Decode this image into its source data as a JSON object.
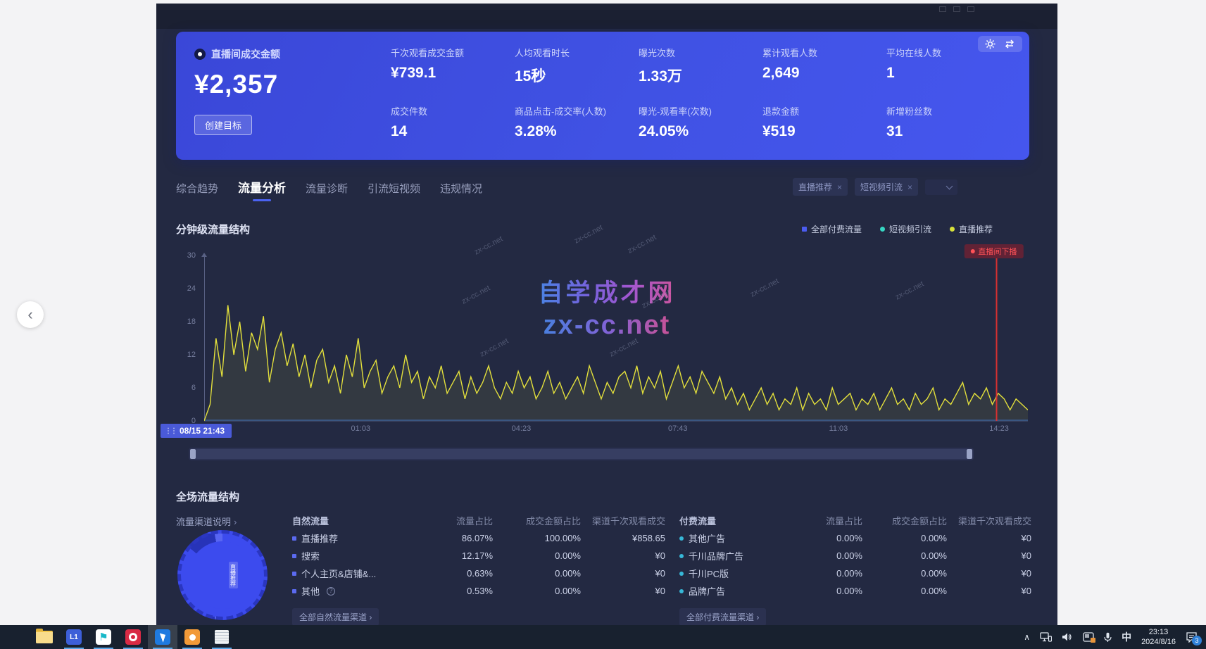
{
  "page": {
    "back_glyph": "‹"
  },
  "icons": {
    "close": "×",
    "grip": "⋮⋮",
    "chevron_right": "›",
    "info": "?",
    "collapse": "∧",
    "flag": "⚑"
  },
  "watermark": {
    "title": "自学成才网",
    "url": "zx-cc.net"
  },
  "header_card": {
    "primary": {
      "label": "直播间成交金额",
      "value": "¥2,357",
      "button": "创建目标"
    },
    "metrics": [
      {
        "label": "千次观看成交金额",
        "value": "¥739.1"
      },
      {
        "label": "人均观看时长",
        "value": "15秒"
      },
      {
        "label": "曝光次数",
        "value": "1.33万"
      },
      {
        "label": "累计观看人数",
        "value": "2,649"
      },
      {
        "label": "平均在线人数",
        "value": "1"
      },
      {
        "label": "成交件数",
        "value": "14"
      },
      {
        "label": "商品点击-成交率(人数)",
        "value": "3.28%"
      },
      {
        "label": "曝光-观看率(次数)",
        "value": "24.05%"
      },
      {
        "label": "退款金额",
        "value": "¥519"
      },
      {
        "label": "新增粉丝数",
        "value": "31"
      }
    ]
  },
  "tabs": [
    {
      "label": "综合趋势",
      "active": false
    },
    {
      "label": "流量分析",
      "active": true
    },
    {
      "label": "流量诊断",
      "active": false
    },
    {
      "label": "引流短视频",
      "active": false
    },
    {
      "label": "违规情况",
      "active": false
    }
  ],
  "filters": {
    "chips": [
      {
        "label": "直播推荐"
      },
      {
        "label": "短视频引流"
      }
    ]
  },
  "minute_section": {
    "title": "分钟级流量结构",
    "legend": [
      {
        "label": "全部付费流量",
        "color": "#4b5cf0",
        "shape": "square"
      },
      {
        "label": "短视频引流",
        "color": "#36d6c3",
        "shape": "circle"
      },
      {
        "label": "直播推荐",
        "color": "#d8e23a",
        "shape": "circle"
      }
    ]
  },
  "chart_data": {
    "type": "line",
    "title": "分钟级流量结构",
    "ylabel": "",
    "ylim": [
      0,
      30
    ],
    "y_ticks": [
      0,
      6,
      12,
      18,
      24,
      30
    ],
    "grid": false,
    "legend_position": "top-right",
    "x_start_label": "08/15 21:43",
    "x_ticks": [
      {
        "label": "01:03",
        "pos": 0.19
      },
      {
        "label": "04:23",
        "pos": 0.385
      },
      {
        "label": "07:43",
        "pos": 0.575
      },
      {
        "label": "11:03",
        "pos": 0.77
      },
      {
        "label": "14:23",
        "pos": 0.965
      }
    ],
    "marker": {
      "label": "直播间下播",
      "pos": 0.962
    },
    "series": [
      {
        "name": "直播推荐",
        "color": "#e3e03c",
        "values": [
          0,
          3,
          15,
          8,
          21,
          12,
          18,
          9,
          16,
          13,
          19,
          7,
          13,
          16,
          10,
          14,
          8,
          12,
          6,
          11,
          13,
          7,
          10,
          5,
          12,
          8,
          15,
          6,
          9,
          11,
          5,
          8,
          10,
          6,
          12,
          7,
          9,
          4,
          8,
          6,
          10,
          5,
          7,
          9,
          4,
          8,
          5,
          7,
          10,
          6,
          4,
          7,
          5,
          9,
          6,
          8,
          4,
          6,
          9,
          5,
          7,
          4,
          6,
          8,
          5,
          10,
          7,
          4,
          7,
          5,
          8,
          9,
          6,
          10,
          5,
          8,
          6,
          9,
          4,
          7,
          10,
          6,
          8,
          5,
          9,
          7,
          5,
          8,
          4,
          6,
          3,
          5,
          2,
          4,
          6,
          3,
          5,
          2,
          4,
          3,
          6,
          2,
          5,
          3,
          4,
          2,
          6,
          3,
          4,
          5,
          2,
          4,
          3,
          5,
          2,
          4,
          6,
          3,
          4,
          2,
          5,
          3,
          4,
          6,
          2,
          4,
          3,
          5,
          7,
          3,
          5,
          4,
          6,
          3,
          5,
          4,
          2,
          4,
          3,
          2
        ]
      },
      {
        "name": "短视频引流",
        "color": "#36d6c3",
        "flat_value": 0
      },
      {
        "name": "全部付费流量",
        "color": "#4b5cf0",
        "flat_value": 0
      }
    ]
  },
  "overall_section": {
    "title": "全场流量结构",
    "channel_note_label": "流量渠道说明",
    "donut_label": "直播推荐",
    "natural": {
      "title": "自然流量",
      "columns": [
        "流量占比",
        "成交金额占比",
        "渠道千次观看成交"
      ],
      "bullet_color": "#5b6af0",
      "bullet_shape": "square",
      "rows": [
        {
          "name": "直播推荐",
          "traffic": "86.07%",
          "gmv": "100.00%",
          "per_mille": "¥858.65",
          "info": false
        },
        {
          "name": "搜索",
          "traffic": "12.17%",
          "gmv": "0.00%",
          "per_mille": "¥0",
          "info": false
        },
        {
          "name": "个人主页&店铺&...",
          "traffic": "0.63%",
          "gmv": "0.00%",
          "per_mille": "¥0",
          "info": false
        },
        {
          "name": "其他",
          "traffic": "0.53%",
          "gmv": "0.00%",
          "per_mille": "¥0",
          "info": true
        }
      ],
      "footer": "全部自然流量渠道"
    },
    "paid": {
      "title": "付费流量",
      "columns": [
        "流量占比",
        "成交金额占比",
        "渠道千次观看成交"
      ],
      "bullet_color": "#37b8d8",
      "bullet_shape": "circle",
      "rows": [
        {
          "name": "其他广告",
          "traffic": "0.00%",
          "gmv": "0.00%",
          "per_mille": "¥0",
          "info": false
        },
        {
          "name": "千川品牌广告",
          "traffic": "0.00%",
          "gmv": "0.00%",
          "per_mille": "¥0",
          "info": false
        },
        {
          "name": "千川PC版",
          "traffic": "0.00%",
          "gmv": "0.00%",
          "per_mille": "¥0",
          "info": false
        },
        {
          "name": "品牌广告",
          "traffic": "0.00%",
          "gmv": "0.00%",
          "per_mille": "¥0",
          "info": false
        }
      ],
      "footer": "全部付费流量渠道"
    }
  },
  "taskbar": {
    "apps": [
      {
        "name": "start-button",
        "kind": "start",
        "bg": "",
        "running": false,
        "active": false
      },
      {
        "name": "file-explorer",
        "kind": "folder",
        "bg": "",
        "running": false,
        "active": false
      },
      {
        "name": "app-l1",
        "kind": "glyph",
        "glyph": "L1",
        "bg": "#3d5fd8",
        "running": true,
        "active": false
      },
      {
        "name": "app-teal-flag",
        "kind": "flag",
        "bg": "#ffffff",
        "running": true,
        "active": false
      },
      {
        "name": "app-red-ring",
        "kind": "ring",
        "bg": "#d92b45",
        "running": true,
        "active": false
      },
      {
        "name": "app-blue-cursor",
        "kind": "cursor",
        "bg": "#1f7ae0",
        "running": true,
        "active": true
      },
      {
        "name": "app-orange",
        "kind": "dot",
        "bg": "#f29a38",
        "running": true,
        "active": false
      },
      {
        "name": "app-notes",
        "kind": "note",
        "bg": "",
        "running": true,
        "active": false
      }
    ],
    "ime": "中",
    "time": "23:13",
    "date": "2024/8/16",
    "notification_count": "3"
  }
}
